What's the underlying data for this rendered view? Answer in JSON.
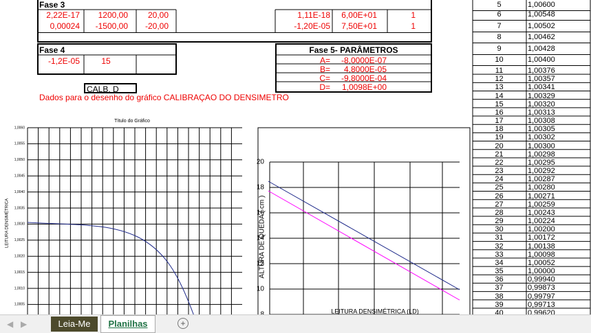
{
  "fase3": {
    "title": "Fase 3",
    "left_rows": [
      [
        "2,22E-17",
        "1200,00",
        "20,00"
      ],
      [
        "0,00024",
        "-1500,00",
        "-20,00"
      ]
    ],
    "right_rows": [
      [
        "1,11E-18",
        "6,00E+01",
        "1"
      ],
      [
        "-1,20E-05",
        "7,50E+01",
        "1"
      ]
    ]
  },
  "fase4": {
    "title": "Fase 4",
    "row": [
      "-1,2E-05",
      "15"
    ]
  },
  "fase5": {
    "title": "Fase 5- PARÂMETROS",
    "params": [
      [
        "A=",
        "-8,0000E-07"
      ],
      [
        "B=",
        "4,8000E-05"
      ],
      [
        "C=",
        "-9,8000E-04"
      ],
      [
        "D=",
        "1,0098E+00"
      ]
    ]
  },
  "calb_label": "CALB. D",
  "note": "Dados para o desenho do gráfico CALIBRAÇAO DO DENSIMETRO",
  "left_chart": {
    "title": "Título do Gráfico",
    "y_label": "LEITURA DENSIMÉTRICA",
    "y_ticks": [
      "1,0060",
      "1,0055",
      "1,0050",
      "1,0045",
      "1,0040",
      "1,0035",
      "1,0030",
      "1,0025",
      "1,0020",
      "1,0015",
      "1,0010",
      "1,0005"
    ]
  },
  "right_chart": {
    "y_label": "ALTURA DE QUEDA ( cm )",
    "x_label": "LEITURA DENSIMÉTRICA (LD)",
    "y_ticks": [
      "20",
      "18",
      "16",
      "14",
      "12",
      "10",
      "8"
    ]
  },
  "side_table": {
    "rows": [
      [
        "5",
        "1,00600"
      ],
      [
        "6",
        "1,00548"
      ],
      [
        "7",
        "1,00502"
      ],
      [
        "8",
        "1,00462"
      ],
      [
        "9",
        "1,00428"
      ],
      [
        "10",
        "1,00400"
      ],
      [
        "11",
        "1,00376"
      ],
      [
        "12",
        "1,00357"
      ],
      [
        "13",
        "1,00341"
      ],
      [
        "14",
        "1,00329"
      ],
      [
        "15",
        "1,00320"
      ],
      [
        "16",
        "1,00313"
      ],
      [
        "17",
        "1,00308"
      ],
      [
        "18",
        "1,00305"
      ],
      [
        "19",
        "1,00302"
      ],
      [
        "20",
        "1,00300"
      ],
      [
        "21",
        "1,00298"
      ],
      [
        "22",
        "1,00295"
      ],
      [
        "23",
        "1,00292"
      ],
      [
        "24",
        "1,00287"
      ],
      [
        "25",
        "1,00280"
      ],
      [
        "26",
        "1,00271"
      ],
      [
        "27",
        "1,00259"
      ],
      [
        "28",
        "1,00243"
      ],
      [
        "29",
        "1,00224"
      ],
      [
        "30",
        "1,00200"
      ],
      [
        "31",
        "1,00172"
      ],
      [
        "32",
        "1,00138"
      ],
      [
        "33",
        "1,00098"
      ],
      [
        "34",
        "1,00052"
      ],
      [
        "35",
        "1,00000"
      ],
      [
        "36",
        "0,99940"
      ],
      [
        "37",
        "0,99873"
      ],
      [
        "38",
        "0,99797"
      ],
      [
        "39",
        "0,99713"
      ],
      [
        "40",
        "0,99620"
      ]
    ]
  },
  "tabs": [
    "Leia-Me",
    "Planilhas"
  ]
}
